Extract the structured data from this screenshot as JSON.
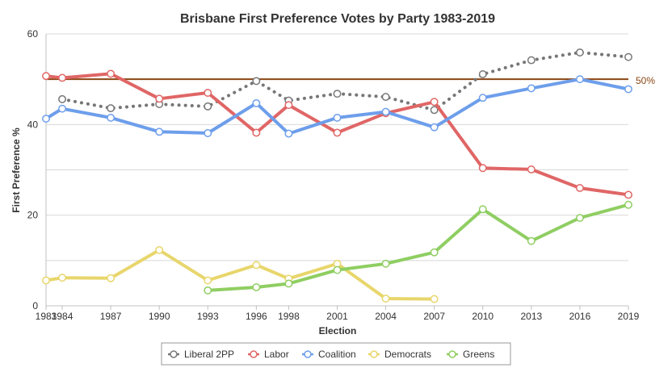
{
  "chart_data": {
    "type": "line",
    "title": "Brisbane First Preference Votes by Party 1983-2019",
    "xlabel": "Election",
    "ylabel": "First Preference %",
    "x": [
      1983,
      1984,
      1987,
      1990,
      1993,
      1996,
      1998,
      2001,
      2004,
      2007,
      2010,
      2013,
      2016,
      2019
    ],
    "xlim": [
      1983,
      2019
    ],
    "ylim": [
      0,
      60
    ],
    "yticks": [
      0,
      20,
      40,
      60
    ],
    "grid": true,
    "legend_position": "bottom",
    "reference_line": {
      "value": 50,
      "label": "50%",
      "color": "#8b4513"
    },
    "series": [
      {
        "name": "Liberal 2PP",
        "color": "#777777",
        "dashed": true,
        "values": [
          null,
          45.6,
          43.6,
          44.5,
          44.0,
          49.6,
          45.3,
          46.8,
          46.1,
          43.2,
          51.1,
          54.2,
          55.9,
          54.9
        ]
      },
      {
        "name": "Labor",
        "color": "#e06666",
        "dashed": false,
        "values": [
          50.7,
          50.3,
          51.2,
          45.7,
          47.0,
          38.2,
          44.3,
          38.2,
          42.5,
          45.0,
          30.4,
          30.1,
          26.0,
          24.5
        ]
      },
      {
        "name": "Coalition",
        "color": "#6d9eeb",
        "dashed": false,
        "values": [
          41.3,
          43.5,
          41.5,
          38.4,
          38.1,
          44.7,
          38.0,
          41.5,
          42.8,
          39.4,
          45.9,
          48.0,
          50.0,
          47.8
        ]
      },
      {
        "name": "Democrats",
        "color": "#e8d66c",
        "dashed": false,
        "values": [
          5.6,
          6.2,
          6.1,
          12.3,
          5.6,
          9.0,
          6.0,
          9.3,
          1.6,
          1.5,
          null,
          null,
          null,
          null
        ]
      },
      {
        "name": "Greens",
        "color": "#8fce62",
        "dashed": false,
        "values": [
          null,
          null,
          null,
          null,
          3.4,
          4.1,
          4.9,
          7.9,
          9.3,
          11.8,
          21.3,
          14.3,
          19.4,
          22.3
        ]
      }
    ]
  }
}
